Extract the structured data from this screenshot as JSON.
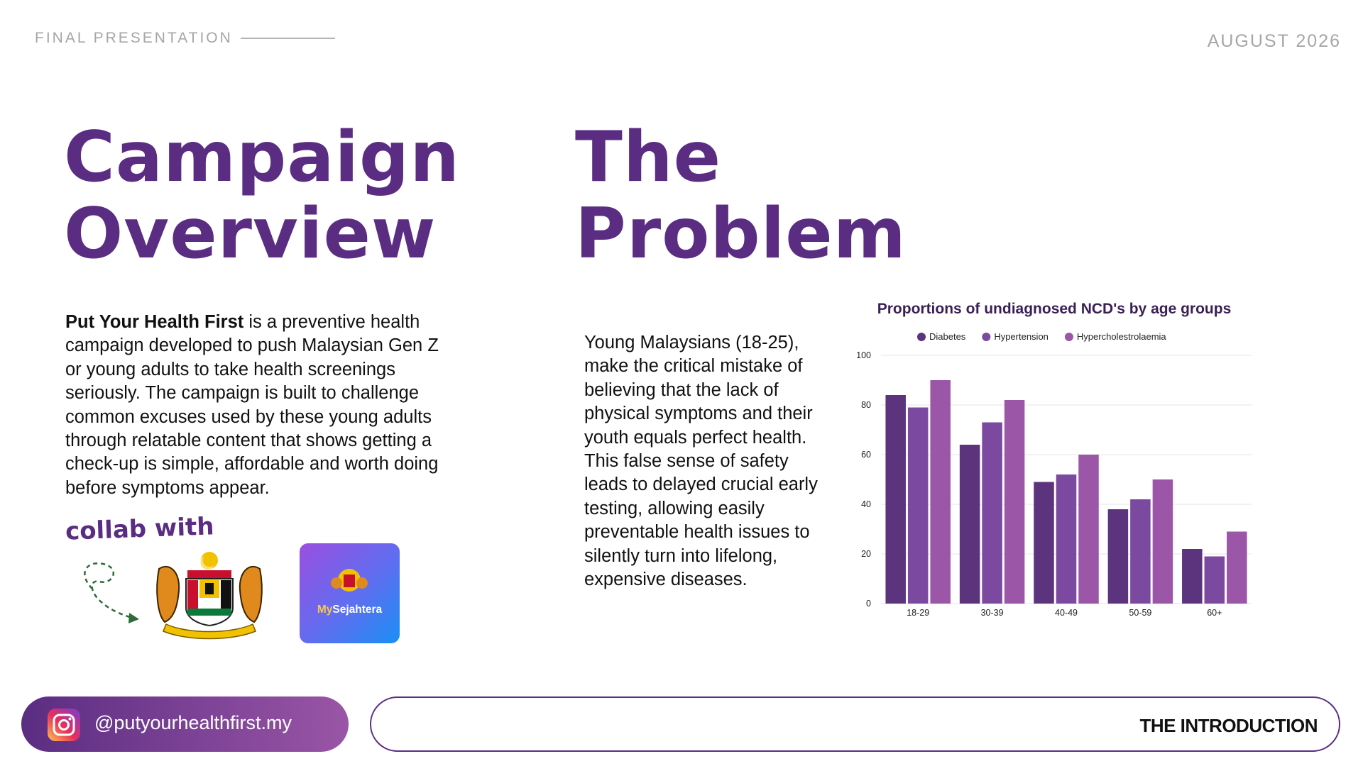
{
  "header": {
    "left": "FINAL PRESENTATION",
    "right": "AUGUST 2026"
  },
  "overview": {
    "title_lines": [
      "Campaign",
      "Overview"
    ],
    "lead": "Put Your Health First",
    "body": " is a preventive health campaign developed to push Malaysian Gen Z or young adults to take health screenings seriously. The campaign is built to challenge common excuses used by these young adults through relatable content that shows getting a check-up is simple, affordable and worth doing before symptoms appear.",
    "collab": "collab with",
    "app_logo": {
      "prefix": "My",
      "suffix": "Sejahtera"
    }
  },
  "problem": {
    "title_lines": [
      "The",
      "Problem"
    ],
    "body": "Young Malaysians (18-25), make the critical mistake of believing that the lack of physical symptoms and their youth equals perfect health. This false sense of safety leads to delayed crucial early testing, allowing easily preventable health issues to silently turn into lifelong, expensive diseases."
  },
  "footer": {
    "handle": "@putyourhealthfirst.my",
    "label": "THE INTRODUCTION"
  },
  "chart_data": {
    "type": "bar",
    "title": "Proportions of undiagnosed NCD's by age groups",
    "categories": [
      "18-29",
      "30-39",
      "40-49",
      "50-59",
      "60+"
    ],
    "series": [
      {
        "name": "Diabetes",
        "color": "#5c347e",
        "values": [
          84,
          64,
          49,
          38,
          22
        ]
      },
      {
        "name": "Hypertension",
        "color": "#7b4aa0",
        "values": [
          79,
          73,
          52,
          42,
          19
        ]
      },
      {
        "name": "Hypercholestrolaemia",
        "color": "#9c56a8",
        "values": [
          90,
          82,
          60,
          50,
          29
        ]
      }
    ],
    "ylim": [
      0,
      100
    ],
    "yticks": [
      0,
      20,
      40,
      60,
      80,
      100
    ],
    "grid": true,
    "legend": "top"
  }
}
